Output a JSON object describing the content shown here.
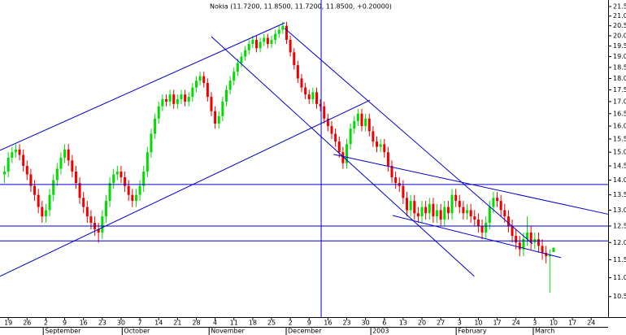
{
  "chart_data": {
    "type": "candlestick",
    "title": "Nokia (11.7200, 11.8500, 11.7200, 11.8500, +0.20000)",
    "log_scale": true,
    "up_color": "#00dd00",
    "down_color": "#ee0000",
    "line_color": "#0000cc",
    "xlim": [
      -1.2,
      160.5
    ],
    "ylim": [
      9.98,
      21.85
    ],
    "x": [
      0,
      1,
      2,
      3,
      4,
      5,
      6,
      7,
      8,
      9,
      10,
      11,
      12,
      13,
      14,
      15,
      16,
      17,
      18,
      19,
      20,
      21,
      22,
      23,
      24,
      25,
      26,
      27,
      28,
      29,
      30,
      31,
      32,
      33,
      34,
      35,
      36,
      37,
      38,
      39,
      40,
      41,
      42,
      43,
      44,
      45,
      46,
      47,
      48,
      49,
      50,
      51,
      52,
      53,
      54,
      55,
      56,
      57,
      58,
      59,
      60,
      61,
      62,
      63,
      64,
      65,
      66,
      67,
      68,
      69,
      70,
      71,
      72,
      73,
      74,
      75,
      76,
      77,
      78,
      79,
      80,
      81,
      82,
      83,
      84,
      85,
      86,
      87,
      88,
      89,
      90,
      91,
      92,
      93,
      94,
      95,
      96,
      97,
      98,
      99,
      100,
      101,
      102,
      103,
      104,
      105,
      106,
      107,
      108,
      109,
      110,
      111,
      112,
      113,
      114,
      115,
      116,
      117,
      118,
      119,
      120,
      121,
      122,
      123,
      124,
      125,
      126,
      127,
      128,
      129,
      130,
      131,
      132,
      133,
      134,
      135,
      136,
      137,
      138,
      139,
      140,
      141,
      142,
      143,
      144,
      145,
      146
    ],
    "open": [
      14.2,
      14.3,
      14.8,
      15.0,
      15.1,
      14.9,
      14.5,
      14.2,
      13.8,
      13.5,
      13.1,
      12.8,
      13.0,
      13.5,
      14.0,
      14.4,
      14.8,
      15.1,
      14.7,
      14.3,
      13.9,
      13.4,
      13.1,
      12.8,
      12.6,
      12.4,
      12.3,
      12.8,
      13.3,
      13.9,
      14.2,
      14.3,
      14.1,
      13.8,
      13.5,
      13.3,
      13.5,
      13.8,
      14.3,
      15.0,
      15.7,
      16.3,
      16.8,
      17.1,
      17.0,
      17.3,
      16.9,
      17.1,
      17.3,
      17.0,
      17.2,
      17.6,
      17.9,
      18.1,
      17.8,
      17.2,
      16.6,
      16.1,
      16.4,
      17.0,
      17.5,
      17.9,
      18.3,
      18.7,
      19.0,
      19.3,
      19.6,
      19.8,
      19.4,
      19.7,
      19.9,
      19.6,
      19.8,
      20.1,
      20.3,
      20.5,
      19.8,
      19.2,
      18.6,
      18.0,
      17.6,
      17.3,
      17.1,
      17.4,
      16.9,
      16.8,
      16.3,
      16.0,
      15.7,
      15.4,
      15.0,
      14.6,
      15.3,
      15.9,
      16.2,
      16.5,
      16.0,
      16.3,
      15.8,
      15.4,
      15.2,
      15.3,
      15.0,
      14.5,
      14.1,
      13.9,
      13.8,
      13.4,
      13.0,
      13.3,
      12.9,
      12.8,
      13.1,
      12.9,
      13.2,
      12.8,
      13.0,
      12.7,
      13.1,
      12.9,
      13.5,
      13.3,
      13.1,
      12.9,
      13.0,
      12.8,
      12.7,
      12.5,
      12.3,
      12.6,
      13.1,
      13.4,
      13.3,
      13.0,
      12.8,
      12.5,
      12.2,
      12.0,
      11.8,
      12.1,
      12.3,
      12.0,
      12.1,
      11.9,
      11.7,
      11.6,
      11.72
    ],
    "high": [
      14.5,
      15.0,
      15.2,
      15.3,
      15.3,
      15.1,
      14.7,
      14.4,
      14.0,
      13.7,
      13.3,
      13.2,
      13.7,
      14.2,
      14.6,
      15.0,
      15.3,
      15.3,
      14.9,
      14.5,
      14.1,
      13.6,
      13.3,
      13.0,
      12.8,
      12.6,
      13.0,
      13.5,
      14.1,
      14.4,
      14.5,
      14.5,
      14.3,
      14.0,
      13.7,
      13.7,
      14.0,
      14.5,
      15.2,
      15.9,
      16.5,
      17.0,
      17.3,
      17.3,
      17.5,
      17.5,
      17.3,
      17.5,
      17.5,
      17.4,
      17.8,
      18.1,
      18.3,
      18.3,
      18.0,
      17.4,
      16.8,
      16.6,
      17.2,
      17.7,
      18.1,
      18.5,
      18.9,
      19.2,
      19.5,
      19.8,
      20.0,
      20.0,
      19.9,
      20.1,
      20.1,
      20.0,
      20.3,
      20.5,
      20.7,
      20.7,
      20.0,
      19.4,
      18.8,
      18.2,
      17.8,
      17.5,
      17.6,
      17.6,
      17.1,
      17.0,
      16.5,
      16.2,
      15.9,
      15.6,
      15.2,
      15.5,
      16.1,
      16.4,
      16.7,
      16.7,
      16.5,
      16.5,
      16.0,
      15.6,
      15.5,
      15.5,
      15.2,
      14.7,
      14.3,
      14.1,
      14.0,
      13.6,
      13.5,
      13.5,
      13.1,
      13.3,
      13.3,
      13.4,
      13.4,
      13.2,
      13.2,
      13.3,
      13.3,
      13.7,
      13.7,
      13.5,
      13.3,
      13.2,
      13.2,
      13.0,
      12.9,
      12.7,
      12.8,
      13.3,
      13.6,
      13.6,
      13.5,
      13.2,
      13.0,
      12.7,
      12.4,
      12.2,
      12.3,
      12.8,
      12.5,
      12.3,
      12.3,
      12.1,
      11.9,
      11.8,
      11.85
    ],
    "low": [
      13.9,
      14.1,
      14.6,
      14.8,
      14.7,
      14.3,
      14.0,
      13.6,
      13.3,
      12.9,
      12.6,
      12.6,
      12.8,
      13.3,
      13.8,
      14.2,
      14.6,
      14.5,
      14.1,
      13.7,
      13.2,
      12.9,
      12.6,
      12.4,
      12.2,
      12.0,
      12.1,
      12.6,
      13.1,
      13.7,
      14.0,
      13.9,
      13.6,
      13.3,
      13.1,
      13.1,
      13.3,
      13.6,
      14.1,
      14.8,
      15.5,
      16.1,
      16.6,
      16.8,
      16.8,
      16.7,
      16.7,
      16.9,
      16.8,
      16.8,
      17.0,
      17.4,
      17.7,
      17.6,
      17.0,
      16.4,
      15.9,
      15.9,
      16.2,
      16.8,
      17.3,
      17.7,
      18.1,
      18.5,
      18.8,
      19.1,
      19.4,
      19.2,
      19.2,
      19.5,
      19.4,
      19.4,
      19.6,
      19.9,
      20.1,
      19.6,
      19.0,
      18.4,
      17.8,
      17.4,
      17.1,
      16.9,
      16.9,
      16.7,
      16.6,
      16.1,
      15.8,
      15.5,
      15.2,
      14.8,
      14.4,
      14.4,
      15.1,
      15.7,
      16.0,
      15.8,
      15.8,
      15.6,
      15.2,
      15.0,
      15.0,
      14.8,
      14.3,
      13.9,
      13.7,
      13.6,
      13.2,
      12.8,
      12.8,
      12.7,
      12.6,
      12.6,
      12.7,
      12.7,
      12.6,
      12.6,
      12.5,
      12.5,
      12.7,
      12.7,
      13.1,
      12.9,
      12.7,
      12.7,
      12.6,
      12.5,
      12.3,
      12.1,
      12.1,
      12.4,
      12.9,
      13.1,
      12.8,
      12.6,
      12.3,
      12.0,
      11.8,
      11.6,
      11.6,
      11.9,
      11.8,
      11.8,
      11.7,
      11.5,
      11.4,
      10.6,
      11.72
    ],
    "close": [
      14.3,
      14.8,
      15.0,
      15.1,
      14.9,
      14.5,
      14.2,
      13.8,
      13.5,
      13.1,
      12.8,
      13.0,
      13.5,
      14.0,
      14.4,
      14.8,
      15.1,
      14.7,
      14.3,
      13.9,
      13.4,
      13.1,
      12.8,
      12.6,
      12.4,
      12.3,
      12.8,
      13.3,
      13.9,
      14.2,
      14.3,
      14.1,
      13.8,
      13.5,
      13.3,
      13.5,
      13.8,
      14.3,
      15.0,
      15.7,
      16.3,
      16.8,
      17.1,
      17.0,
      17.3,
      16.9,
      17.1,
      17.3,
      17.0,
      17.2,
      17.6,
      17.9,
      18.1,
      17.8,
      17.2,
      16.6,
      16.1,
      16.4,
      17.0,
      17.5,
      17.9,
      18.3,
      18.7,
      19.0,
      19.3,
      19.6,
      19.8,
      19.4,
      19.7,
      19.9,
      19.6,
      19.8,
      20.1,
      20.3,
      20.5,
      19.8,
      19.2,
      18.6,
      18.0,
      17.6,
      17.3,
      17.1,
      17.4,
      16.9,
      16.8,
      16.3,
      16.0,
      15.7,
      15.4,
      15.0,
      14.6,
      15.3,
      15.9,
      16.2,
      16.5,
      16.0,
      16.3,
      15.8,
      15.4,
      15.2,
      15.3,
      15.0,
      14.5,
      14.1,
      13.9,
      13.8,
      13.4,
      13.0,
      13.3,
      12.9,
      12.8,
      13.1,
      12.9,
      13.2,
      12.8,
      13.0,
      12.7,
      13.1,
      12.9,
      13.5,
      13.3,
      13.1,
      12.9,
      13.0,
      12.8,
      12.7,
      12.5,
      12.3,
      12.6,
      13.1,
      13.4,
      13.3,
      13.0,
      12.8,
      12.5,
      12.2,
      12.0,
      11.8,
      12.1,
      12.3,
      12.0,
      12.1,
      11.9,
      11.7,
      11.6,
      11.65,
      11.85
    ],
    "yticks": [
      {
        "value": 10.5,
        "label": "10.5"
      },
      {
        "value": 11,
        "label": "11.0"
      },
      {
        "value": 11.5,
        "label": "11.5"
      },
      {
        "value": 12,
        "label": "12.0"
      },
      {
        "value": 12.5,
        "label": "12.5"
      },
      {
        "value": 13,
        "label": "13.0"
      },
      {
        "value": 13.5,
        "label": "13.5"
      },
      {
        "value": 14,
        "label": "14.0"
      },
      {
        "value": 14.5,
        "label": "14.5"
      },
      {
        "value": 15,
        "label": "15.0"
      },
      {
        "value": 15.5,
        "label": "15.5"
      },
      {
        "value": 16,
        "label": "16.0"
      },
      {
        "value": 16.5,
        "label": "16.5"
      },
      {
        "value": 17,
        "label": "17.0"
      },
      {
        "value": 17.5,
        "label": "17.5"
      },
      {
        "value": 18,
        "label": "18.0"
      },
      {
        "value": 18.5,
        "label": "18.5"
      },
      {
        "value": 19,
        "label": "19.0"
      },
      {
        "value": 19.5,
        "label": "19.5"
      },
      {
        "value": 20,
        "label": "20.0"
      },
      {
        "value": 20.5,
        "label": "20.5"
      },
      {
        "value": 21,
        "label": "21.0"
      },
      {
        "value": 21.5,
        "label": "21.5"
      }
    ],
    "xticks": [
      {
        "value": 1,
        "label": "19"
      },
      {
        "value": 6,
        "label": "26"
      },
      {
        "value": 11,
        "label": "2"
      },
      {
        "value": 16,
        "label": "9"
      },
      {
        "value": 21,
        "label": "16"
      },
      {
        "value": 26,
        "label": "23"
      },
      {
        "value": 31,
        "label": "30"
      },
      {
        "value": 36,
        "label": "7"
      },
      {
        "value": 41,
        "label": "14"
      },
      {
        "value": 46,
        "label": "21"
      },
      {
        "value": 51,
        "label": "28"
      },
      {
        "value": 56,
        "label": "4"
      },
      {
        "value": 61,
        "label": "11"
      },
      {
        "value": 66,
        "label": "18"
      },
      {
        "value": 71,
        "label": "25"
      },
      {
        "value": 76,
        "label": "2"
      },
      {
        "value": 81,
        "label": "9"
      },
      {
        "value": 86,
        "label": "16"
      },
      {
        "value": 91,
        "label": "23"
      },
      {
        "value": 96,
        "label": "30"
      },
      {
        "value": 101,
        "label": "6"
      },
      {
        "value": 106,
        "label": "13"
      },
      {
        "value": 111,
        "label": "20"
      },
      {
        "value": 116,
        "label": "27"
      },
      {
        "value": 121,
        "label": "3"
      },
      {
        "value": 126,
        "label": "10"
      },
      {
        "value": 131,
        "label": "17"
      },
      {
        "value": 136,
        "label": "24"
      },
      {
        "value": 141,
        "label": "3"
      },
      {
        "value": 146,
        "label": "10"
      },
      {
        "value": 151,
        "label": "17"
      },
      {
        "value": 156,
        "label": "24"
      }
    ],
    "month_labels": [
      {
        "value": 10.3,
        "label": "September"
      },
      {
        "value": 31.3,
        "label": "October"
      },
      {
        "value": 54.4,
        "label": "November"
      },
      {
        "value": 74.9,
        "label": "December"
      },
      {
        "value": 97.4,
        "label": "2003"
      },
      {
        "value": 120.1,
        "label": "February"
      },
      {
        "value": 140.6,
        "label": "March"
      }
    ],
    "hlines": [
      13.85,
      12.5,
      12.05
    ],
    "vlines": [
      84.2
    ],
    "trendlines": [
      {
        "x": [
          -1.2,
          74.5
        ],
        "y": [
          15.07,
          20.65
        ]
      },
      {
        "x": [
          -1.2,
          97.2
        ],
        "y": [
          11.04,
          17.06
        ]
      },
      {
        "x": [
          55.0,
          124.9
        ],
        "y": [
          19.96,
          11.04
        ]
      },
      {
        "x": [
          74.5,
          140.4
        ],
        "y": [
          20.37,
          11.96
        ]
      },
      {
        "x": [
          87.5,
          160.5
        ],
        "y": [
          14.92,
          12.87
        ]
      },
      {
        "x": [
          103.2,
          148
        ],
        "y": [
          12.83,
          11.56
        ]
      }
    ]
  }
}
